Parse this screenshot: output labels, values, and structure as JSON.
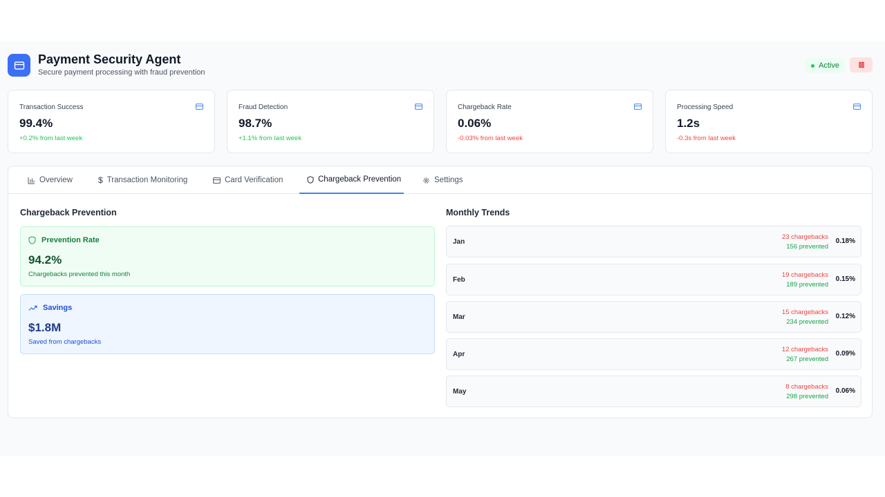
{
  "header": {
    "title": "Payment Security Agent",
    "subtitle": "Secure payment processing with fraud prevention",
    "status": "Active",
    "logo_icon": "credit-card-icon",
    "pause_icon": "pause-icon"
  },
  "metrics": [
    {
      "label": "Transaction Success",
      "value": "99.4%",
      "delta": "+0.2% from last week",
      "trend": "positive"
    },
    {
      "label": "Fraud Detection",
      "value": "98.7%",
      "delta": "+1.1% from last week",
      "trend": "positive"
    },
    {
      "label": "Chargeback Rate",
      "value": "0.06%",
      "delta": "-0.03% from last week",
      "trend": "negative"
    },
    {
      "label": "Processing Speed",
      "value": "1.2s",
      "delta": "-0.3s from last week",
      "trend": "negative"
    }
  ],
  "tabs": [
    {
      "label": "Overview",
      "icon": "bar-chart-icon"
    },
    {
      "label": "Transaction Monitoring",
      "icon": "dollar-icon"
    },
    {
      "label": "Card Verification",
      "icon": "credit-card-icon"
    },
    {
      "label": "Chargeback Prevention",
      "icon": "shield-icon",
      "active": true
    },
    {
      "label": "Settings",
      "icon": "gear-icon"
    }
  ],
  "prevention": {
    "title": "Chargeback Prevention",
    "rate": {
      "label": "Prevention Rate",
      "value": "94.2%",
      "sub": "Chargebacks prevented this month"
    },
    "savings": {
      "label": "Savings",
      "value": "$1.8M",
      "sub": "Saved from chargebacks"
    }
  },
  "trends": {
    "title": "Monthly Trends",
    "rows": [
      {
        "month": "Jan",
        "chargebacks": "23 chargebacks",
        "prevented": "156 prevented",
        "rate": "0.18%"
      },
      {
        "month": "Feb",
        "chargebacks": "19 chargebacks",
        "prevented": "189 prevented",
        "rate": "0.15%"
      },
      {
        "month": "Mar",
        "chargebacks": "15 chargebacks",
        "prevented": "234 prevented",
        "rate": "0.12%"
      },
      {
        "month": "Apr",
        "chargebacks": "12 chargebacks",
        "prevented": "267 prevented",
        "rate": "0.09%"
      },
      {
        "month": "May",
        "chargebacks": "8 chargebacks",
        "prevented": "298 prevented",
        "rate": "0.06%"
      }
    ]
  },
  "colors": {
    "accent": "#3b6ff6",
    "positive": "#22c55e",
    "negative": "#ef4444"
  }
}
